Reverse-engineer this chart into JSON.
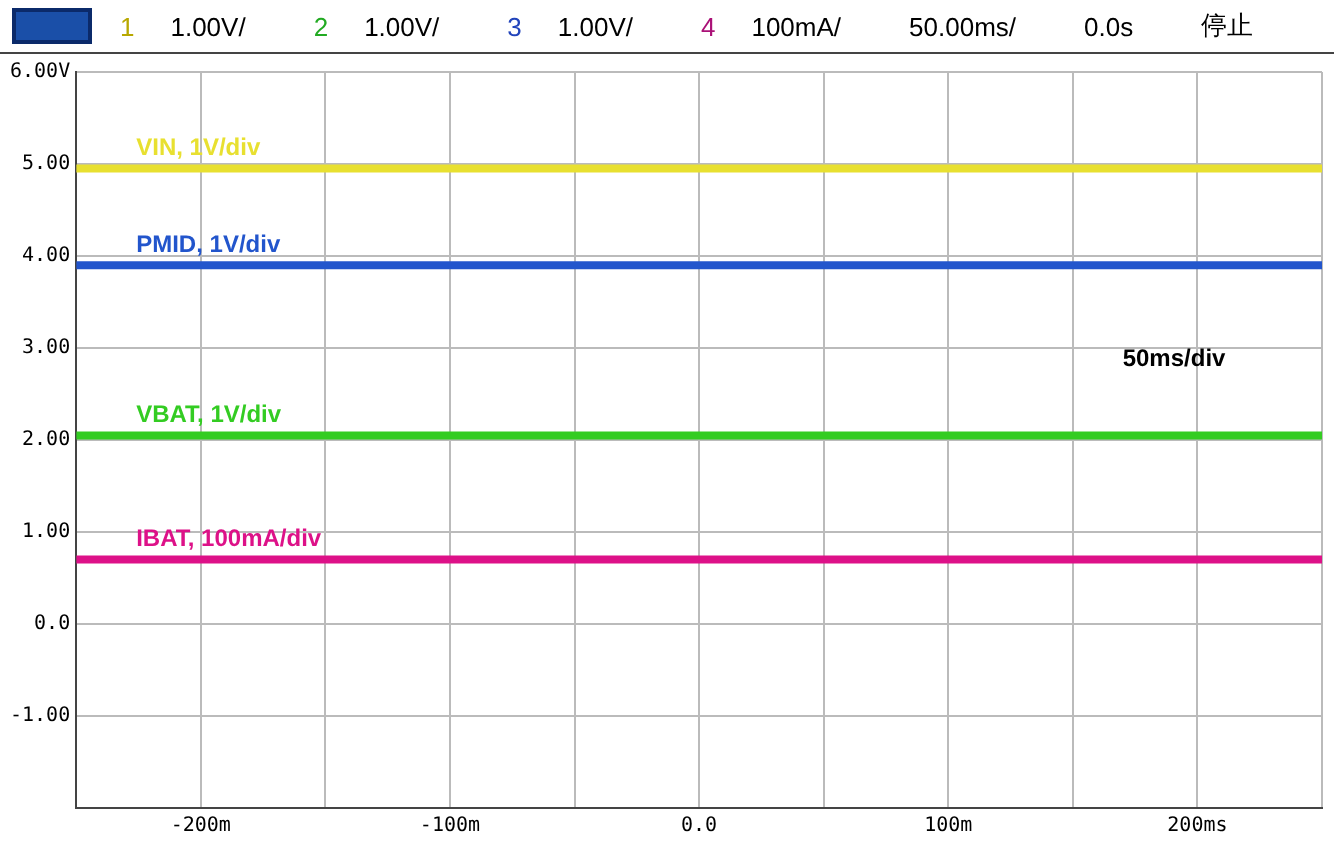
{
  "chart_data": {
    "type": "line",
    "annotations": [
      "1",
      "1.00V/",
      "2",
      "1.00V/",
      "3",
      "1.00V/",
      "4",
      "100mA/",
      "50.00ms/",
      "0.0s",
      "停止",
      "50ms/div"
    ],
    "x": [
      -250,
      250
    ],
    "series": [
      {
        "name": "VIN, 1V/div",
        "color": "#e8e030",
        "values": [
          4.95,
          4.95
        ]
      },
      {
        "name": "PMID, 1V/div",
        "color": "#2255cc",
        "values": [
          3.9,
          3.9
        ]
      },
      {
        "name": "VBAT, 1V/div",
        "color": "#33cc22",
        "values": [
          2.05,
          2.05
        ]
      },
      {
        "name": "IBAT, 100mA/div",
        "color": "#dd1188",
        "values": [
          0.7,
          0.7
        ]
      }
    ],
    "xlim": [
      -250,
      250
    ],
    "xticks": [
      {
        "value": -250,
        "label": null
      },
      {
        "value": -200,
        "label": "-200m"
      },
      {
        "value": -150,
        "label": null
      },
      {
        "value": -100,
        "label": "-100m"
      },
      {
        "value": -50,
        "label": null
      },
      {
        "value": 0,
        "label": "0.0"
      },
      {
        "value": 50,
        "label": null
      },
      {
        "value": 100,
        "label": "100m"
      },
      {
        "value": 150,
        "label": null
      },
      {
        "value": 200,
        "label": "200ms"
      },
      {
        "value": 250,
        "label": null
      }
    ],
    "ylim": [
      -2,
      6
    ],
    "yticks": [
      {
        "value": -2,
        "label": null
      },
      {
        "value": -1,
        "label": "-1.00"
      },
      {
        "value": 0,
        "label": "0.0"
      },
      {
        "value": 1,
        "label": "1.00"
      },
      {
        "value": 2,
        "label": "2.00"
      },
      {
        "value": 3,
        "label": "3.00"
      },
      {
        "value": 4,
        "label": "4.00"
      },
      {
        "value": 5,
        "label": "5.00"
      },
      {
        "value": 6,
        "label": "6.00V"
      }
    ],
    "grid": true,
    "legend": false,
    "marker": "none",
    "line_style": "solid"
  }
}
